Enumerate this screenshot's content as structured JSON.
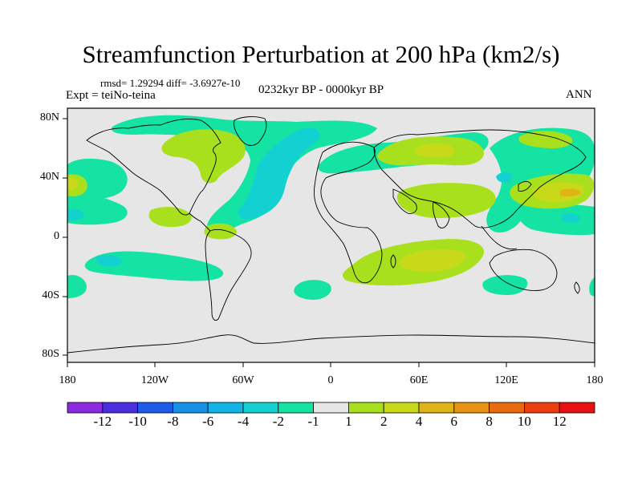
{
  "title": "Streamfunction Perturbation at 200 hPa (km2/s)",
  "stats": "rmsd= 1.29294 diff= -3.6927e-10",
  "experiment": "Expt = teiNo-teina",
  "period": "0232kyr BP - 0000kyr BP",
  "season": "ANN",
  "latitude_labels": [
    "80N",
    "40N",
    "0",
    "40S",
    "80S"
  ],
  "longitude_labels": [
    "180",
    "120W",
    "60W",
    "0",
    "60E",
    "120E",
    "180"
  ],
  "colorbar": {
    "labels": [
      "-12",
      "-10",
      "-8",
      "-6",
      "-4",
      "-2",
      "-1",
      "1",
      "2",
      "4",
      "6",
      "8",
      "10",
      "12"
    ],
    "colors": [
      "#8a2be2",
      "#4b2ee0",
      "#1f5be6",
      "#1490e6",
      "#12b4e6",
      "#13d1d1",
      "#15e3a3",
      "#e6e6e6",
      "#a8e01e",
      "#c8d91a",
      "#e0b414",
      "#e89412",
      "#ea6a10",
      "#ec3d10",
      "#e81010"
    ]
  },
  "colors": {
    "land_outline": "#000000",
    "background": "#e6e6e6",
    "neg1": "#15e3a3",
    "neg2": "#13d1d1",
    "pos1": "#a8e01e",
    "pos2": "#c8d91a"
  }
}
